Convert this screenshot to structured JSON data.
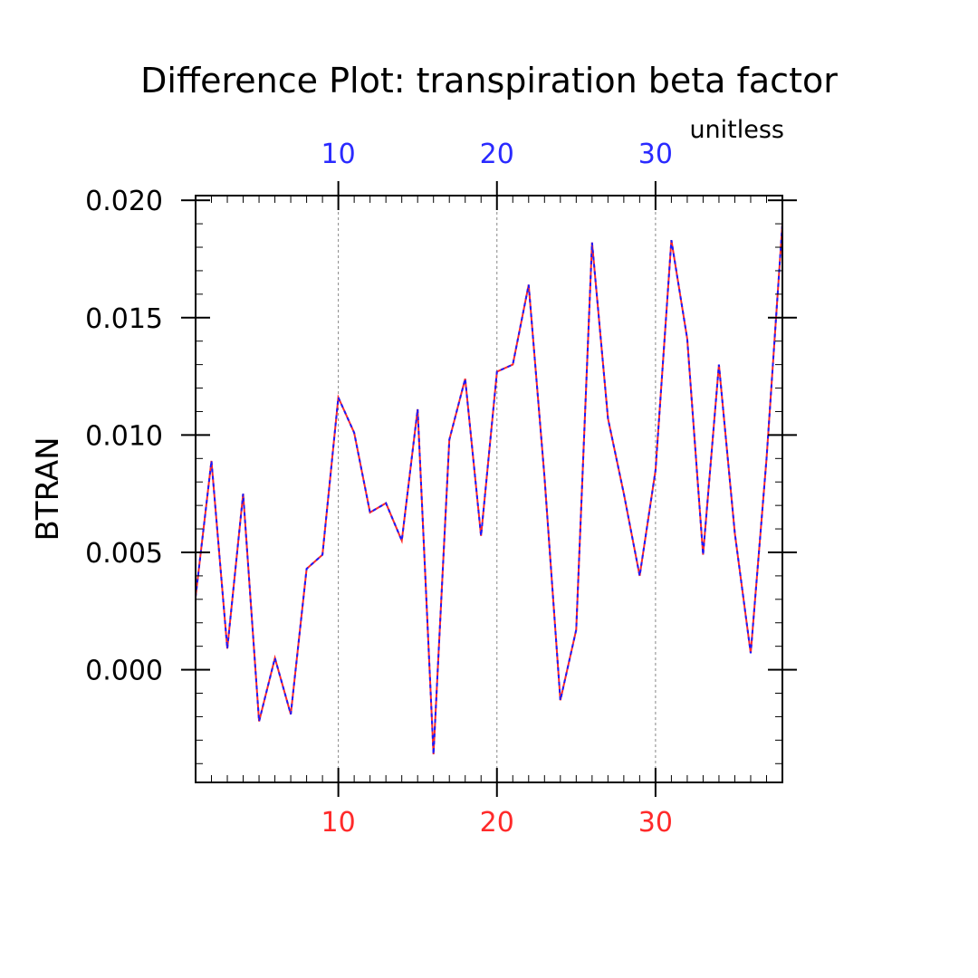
{
  "chart_data": {
    "type": "line",
    "title": "Difference Plot: transpiration beta factor",
    "units": "unitless",
    "ylabel": "BTRAN",
    "xlabel": "",
    "xlim": [
      1,
      38
    ],
    "ylim": [
      -0.0048,
      0.0202
    ],
    "x_ticks_major": [
      10,
      20,
      30
    ],
    "y_ticks_major": [
      0.0,
      0.005,
      0.01,
      0.015,
      0.02
    ],
    "y_tick_labels": [
      "0.000",
      "0.005",
      "0.010",
      "0.015",
      "0.020"
    ],
    "bottom_axis_tick_labels": [
      "10",
      "20",
      "30"
    ],
    "top_axis_tick_labels": [
      "10",
      "20",
      "30"
    ],
    "grid": "vertical dashed lines at x = 10, 20, 30",
    "colors": {
      "bottom_axis_labels": "#ff2a2a",
      "top_axis_labels": "#2a2aff",
      "series_a": "#ff2a2a",
      "series_b": "#1a1aff",
      "grid": "#888888",
      "axis": "#000000"
    },
    "series": [
      {
        "style": "solid",
        "color": "#ff2a2a",
        "x": [
          1,
          2,
          3,
          4,
          5,
          6,
          7,
          8,
          9,
          10,
          11,
          12,
          13,
          14,
          15,
          16,
          17,
          18,
          19,
          20,
          21,
          22,
          23,
          24,
          25,
          26,
          27,
          28,
          29,
          30,
          31,
          32,
          33,
          34,
          35,
          36,
          37,
          38
        ],
        "values": [
          0.0031,
          0.0089,
          0.0009,
          0.0075,
          -0.0022,
          0.0005,
          -0.0019,
          0.0043,
          0.0049,
          0.0116,
          0.0101,
          0.0067,
          0.0071,
          0.0055,
          0.0111,
          -0.0036,
          0.0098,
          0.0124,
          0.0057,
          0.0127,
          0.013,
          0.0164,
          0.0082,
          -0.0013,
          0.0017,
          0.0182,
          0.0107,
          0.0075,
          0.004,
          0.0085,
          0.0183,
          0.0141,
          0.0049,
          0.013,
          0.0058,
          0.0007,
          0.009,
          0.019
        ]
      },
      {
        "style": "dashed",
        "color": "#1a1aff",
        "x": [
          1,
          2,
          3,
          4,
          5,
          6,
          7,
          8,
          9,
          10,
          11,
          12,
          13,
          14,
          15,
          16,
          17,
          18,
          19,
          20,
          21,
          22,
          23,
          24,
          25,
          26,
          27,
          28,
          29,
          30,
          31,
          32,
          33,
          34,
          35,
          36,
          37,
          38
        ],
        "values": [
          0.0031,
          0.0089,
          0.0009,
          0.0075,
          -0.0022,
          0.0005,
          -0.0019,
          0.0043,
          0.0049,
          0.0116,
          0.0101,
          0.0067,
          0.0071,
          0.0055,
          0.0111,
          -0.0036,
          0.0098,
          0.0124,
          0.0057,
          0.0127,
          0.013,
          0.0164,
          0.0082,
          -0.0013,
          0.0017,
          0.0182,
          0.0107,
          0.0075,
          0.004,
          0.0085,
          0.0183,
          0.0141,
          0.0049,
          0.013,
          0.0058,
          0.0007,
          0.009,
          0.019
        ]
      }
    ]
  }
}
